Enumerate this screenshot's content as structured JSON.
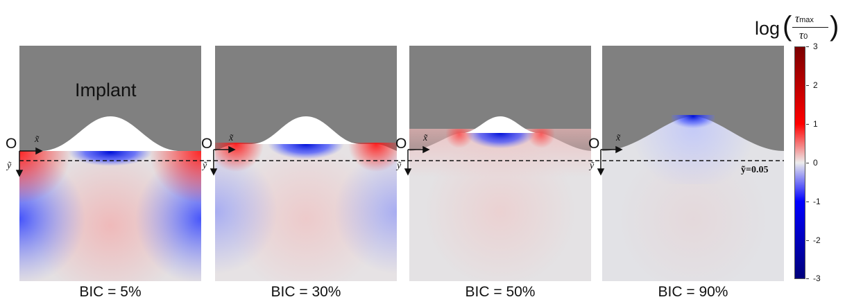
{
  "implant_label": "Implant",
  "origin_label": "O",
  "x_axis_label": "x̃",
  "y_axis_label": "ỹ",
  "ytilde_annotation": "ỹ=0.05",
  "panels": [
    {
      "label": "BIC = 5%"
    },
    {
      "label": "BIC = 30%"
    },
    {
      "label": "BIC = 50%"
    },
    {
      "label": "BIC = 90%"
    }
  ],
  "colorbar": {
    "title_prefix": "log",
    "numerator": "τ",
    "numerator_sub": "max",
    "denominator": "τ",
    "denominator_sub": "0",
    "ticks": [
      "3",
      "2",
      "1",
      "0",
      "-1",
      "-2",
      "-3"
    ],
    "colors": {
      "high": "#7a0000",
      "mid_high": "#ff0000",
      "zero": "#ececec",
      "mid_low": "#0000ff",
      "low": "#00007a"
    }
  },
  "implant_color": "#808080"
}
